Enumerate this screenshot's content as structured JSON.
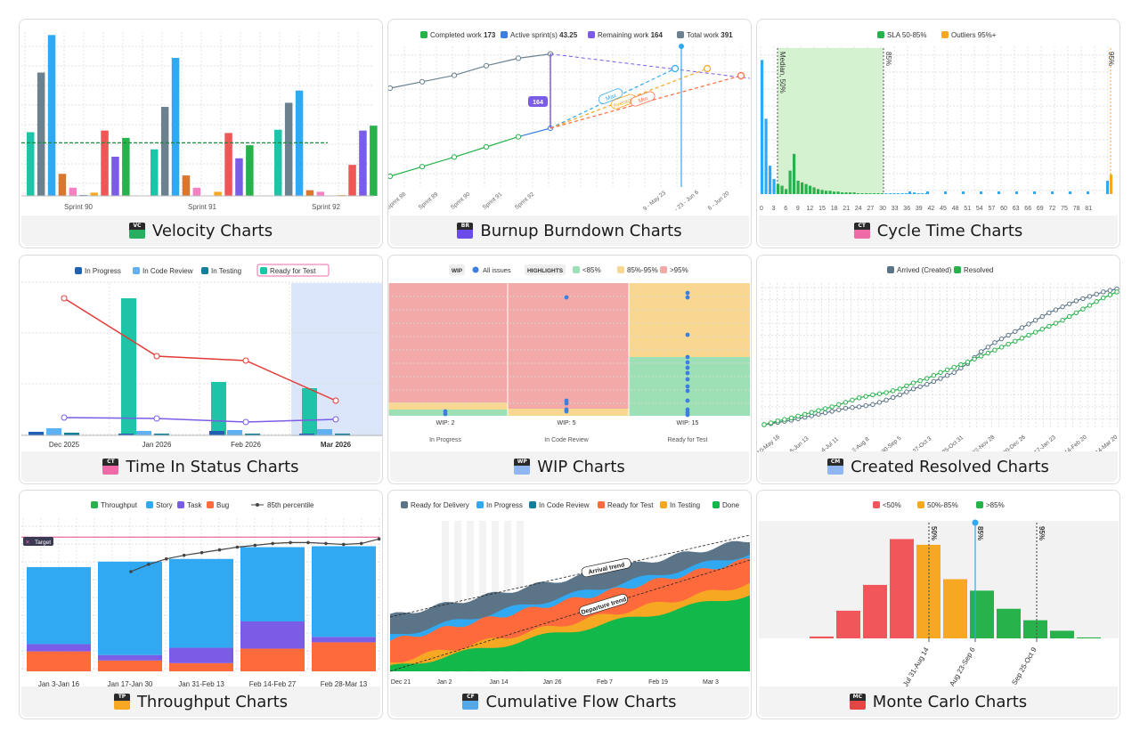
{
  "cards": [
    {
      "title": "Velocity Charts",
      "badge": "VC",
      "badge_color": "#27ae60"
    },
    {
      "title": "Burnup Burndown Charts",
      "badge": "BR",
      "badge_color": "#6c4ce8"
    },
    {
      "title": "Cycle Time Charts",
      "badge": "CT",
      "badge_color": "#f06aa8"
    },
    {
      "title": "Time In Status Charts",
      "badge": "CT",
      "badge_color": "#f06aa8"
    },
    {
      "title": "WIP Charts",
      "badge": "WP",
      "badge_color": "#8fb6f0"
    },
    {
      "title": "Created Resolved Charts",
      "badge": "CM",
      "badge_color": "#8fb6f0"
    },
    {
      "title": "Throughput Charts",
      "badge": "TP",
      "badge_color": "#f7a823"
    },
    {
      "title": "Cumulative Flow Charts",
      "badge": "CF",
      "badge_color": "#54a8e8"
    },
    {
      "title": "Monte Carlo Charts",
      "badge": "MC",
      "badge_color": "#e64545"
    }
  ],
  "chart_data": [
    {
      "type": "bar",
      "categories": [
        "Sprint 90",
        "Sprint 91",
        "Sprint 92"
      ],
      "series_colors": [
        "#1fc4a8",
        "#6b8190",
        "#30a9f2",
        "#d9772e",
        "#f581c2",
        "#2a72b8",
        "#f7a823",
        "#ef5656",
        "#7b5ce6",
        "#27b24c"
      ],
      "values": [
        [
          78,
          151,
          197,
          27,
          10,
          1,
          4,
          80,
          48,
          71
        ],
        [
          57,
          109,
          169,
          25,
          10,
          0,
          5,
          77,
          46,
          62
        ],
        [
          81,
          114,
          129,
          7,
          5,
          0,
          1,
          38,
          80,
          86
        ]
      ],
      "average_line": 65,
      "ylim": [
        0,
        205
      ]
    },
    {
      "type": "line",
      "legend": [
        {
          "label": "Completed work",
          "value": "173",
          "color": "#27b24c"
        },
        {
          "label": "Active sprint(s)",
          "value": "43.25",
          "color": "#3d7fe0"
        },
        {
          "label": "Remaining work",
          "value": "164",
          "color": "#7b5ce6"
        },
        {
          "label": "Total work",
          "value": "391",
          "color": "#6b8190"
        }
      ],
      "x_labels": [
        "Sprint 88",
        "Sprint 89",
        "Sprint 90",
        "Sprint 91",
        "Sprint 92",
        "9 - May 23",
        "- 23 - Jun 6",
        "6 - Jun 20"
      ],
      "total_work": [
        185,
        197,
        209,
        227,
        241,
        249
      ],
      "completed_work": [
        20,
        38,
        56,
        75,
        94,
        110
      ],
      "gap_label": "164",
      "forecast_labels": [
        "Max",
        "Average",
        "Min"
      ]
    },
    {
      "type": "bar",
      "legend": [
        {
          "label": "SLA 50-85%",
          "color": "#27b24c"
        },
        {
          "label": "Outliers 95%+",
          "color": "#f7a823"
        }
      ],
      "x_ticks": [
        "0",
        "3",
        "6",
        "9",
        "12",
        "15",
        "18",
        "21",
        "24",
        "27",
        "30",
        "33",
        "36",
        "39",
        "42",
        "45",
        "48",
        "51",
        "54",
        "57",
        "60",
        "63",
        "66",
        "69",
        "72",
        "75",
        "78",
        "81"
      ],
      "markers": [
        "Median, 50%",
        "85%",
        "95%"
      ],
      "counts": [
        160,
        90,
        34,
        18,
        12,
        10,
        6,
        28,
        48,
        16,
        14,
        12,
        10,
        8,
        6,
        5,
        4,
        4,
        3,
        3,
        2,
        2,
        2,
        2,
        1,
        1,
        1,
        1,
        1,
        1,
        1,
        1,
        1,
        1,
        1,
        1,
        1,
        1,
        2,
        1,
        1,
        1
      ]
    },
    {
      "type": "bar",
      "legend": [
        {
          "label": "In Progress",
          "color": "#1f5fb4"
        },
        {
          "label": "In Code Review",
          "color": "#5fb1f2"
        },
        {
          "label": "In Testing",
          "color": "#137e9a"
        },
        {
          "label": "Ready for Test",
          "color": "#1fc4a8"
        }
      ],
      "categories": [
        "Dec 2025",
        "Jan 2026",
        "Feb 2026",
        "Mar 2026"
      ],
      "values": [
        [
          4,
          8,
          3,
          154
        ],
        [
          2,
          5,
          2,
          60
        ],
        [
          5,
          6,
          2,
          53
        ],
        [
          2,
          7,
          2,
          24
        ]
      ],
      "line_red": [
        154,
        89,
        84,
        39
      ],
      "line_purple": [
        20,
        19,
        15,
        18
      ],
      "ylim": [
        0,
        170
      ]
    },
    {
      "type": "scatter",
      "legend_left": [
        {
          "label": "WIP"
        },
        {
          "label": "All issues",
          "color": "#3d7fe0"
        }
      ],
      "highlights_label": "HIGHLIGHTS",
      "legend_right": [
        {
          "label": "<85%",
          "color": "#9ee0b5"
        },
        {
          "label": "85%-95%",
          "color": "#f8d890"
        },
        {
          "label": ">95%",
          "color": "#f4a9a9"
        }
      ],
      "categories": [
        "In Progress",
        "In Code Review",
        "Ready for Test"
      ],
      "wip_labels": [
        "WIP: 2",
        "WIP: 5",
        "WIP: 15"
      ]
    },
    {
      "type": "line",
      "legend": [
        {
          "label": "Arrived (Created)",
          "color": "#5b7487"
        },
        {
          "label": "Resolved",
          "color": "#27b24c"
        }
      ],
      "x_labels": [
        "10-May 16",
        "6-Jun 13",
        "4-Jul 11",
        "2-Aug 8",
        "30-Sep 5",
        "27-Oct 3",
        "25-Oct 31",
        "22-Nov 28",
        "20-Dec 26",
        "17-Jan 23",
        "14-Feb 20",
        "14-Mar 20"
      ],
      "arrived": [
        0,
        3,
        6,
        10,
        14,
        18,
        22,
        24,
        27,
        33,
        40,
        48,
        54,
        62,
        70,
        82,
        98,
        110,
        120,
        130,
        140,
        150,
        158,
        166,
        172,
        178,
        182
      ],
      "resolved": [
        0,
        5,
        9,
        14,
        19,
        24,
        30,
        36,
        40,
        43,
        48,
        56,
        62,
        70,
        77,
        84,
        92,
        100,
        108,
        116,
        124,
        132,
        140,
        150,
        160,
        170,
        178
      ]
    },
    {
      "type": "bar",
      "legend": [
        {
          "label": "Throughput",
          "color": "#27b24c"
        },
        {
          "label": "Story",
          "color": "#30a9f2"
        },
        {
          "label": "Task",
          "color": "#7b5ce6"
        },
        {
          "label": "Bug",
          "color": "#ff6a3d"
        },
        {
          "label": "85th percentile",
          "color": "#444444"
        }
      ],
      "categories": [
        "Jan 3-Jan 16",
        "Jan 17-Jan 30",
        "Jan 31-Feb 13",
        "Feb 14-Feb 27",
        "Feb 28-Mar 13"
      ],
      "stacks": [
        [
          85,
          8,
          22
        ],
        [
          103,
          6,
          12
        ],
        [
          98,
          17,
          9
        ],
        [
          82,
          30,
          25
        ],
        [
          100,
          6,
          32
        ]
      ],
      "target_label": "Target",
      "target_value": 148,
      "percentile_line": [
        110,
        118,
        124,
        128,
        131,
        134,
        137,
        139,
        141,
        142,
        142,
        141,
        140,
        141,
        146
      ],
      "ylim": [
        0,
        165
      ]
    },
    {
      "type": "area",
      "legend": [
        {
          "label": "Ready for Delivery",
          "color": "#5b7487"
        },
        {
          "label": "In Progress",
          "color": "#30a9f2"
        },
        {
          "label": "In Code Review",
          "color": "#137e9a"
        },
        {
          "label": "Ready for Test",
          "color": "#ff6a3d"
        },
        {
          "label": "In Testing",
          "color": "#f7a823"
        },
        {
          "label": "Done",
          "color": "#13b84a"
        }
      ],
      "x_labels": [
        "Dec 21",
        "Jan 2",
        "Jan 14",
        "Jan 26",
        "Feb 7",
        "Feb 19",
        "Mar 3"
      ],
      "trend_labels": [
        "Arrival trend",
        "Departure trend"
      ]
    },
    {
      "type": "bar",
      "legend": [
        {
          "label": "<50%",
          "color": "#f0565a"
        },
        {
          "label": "50%-85%",
          "color": "#f7a823"
        },
        {
          "label": ">85%",
          "color": "#27b24c"
        }
      ],
      "values": [
        2,
        29,
        56,
        104,
        98,
        62,
        50,
        31,
        19,
        8,
        1
      ],
      "x_labels": [
        "Jul 31-Aug 14",
        "Aug 23-Sep 6",
        "Sep 25-Oct 9"
      ],
      "markers": [
        "50%",
        "85%",
        "95%"
      ],
      "ylim": [
        0,
        110
      ]
    }
  ]
}
